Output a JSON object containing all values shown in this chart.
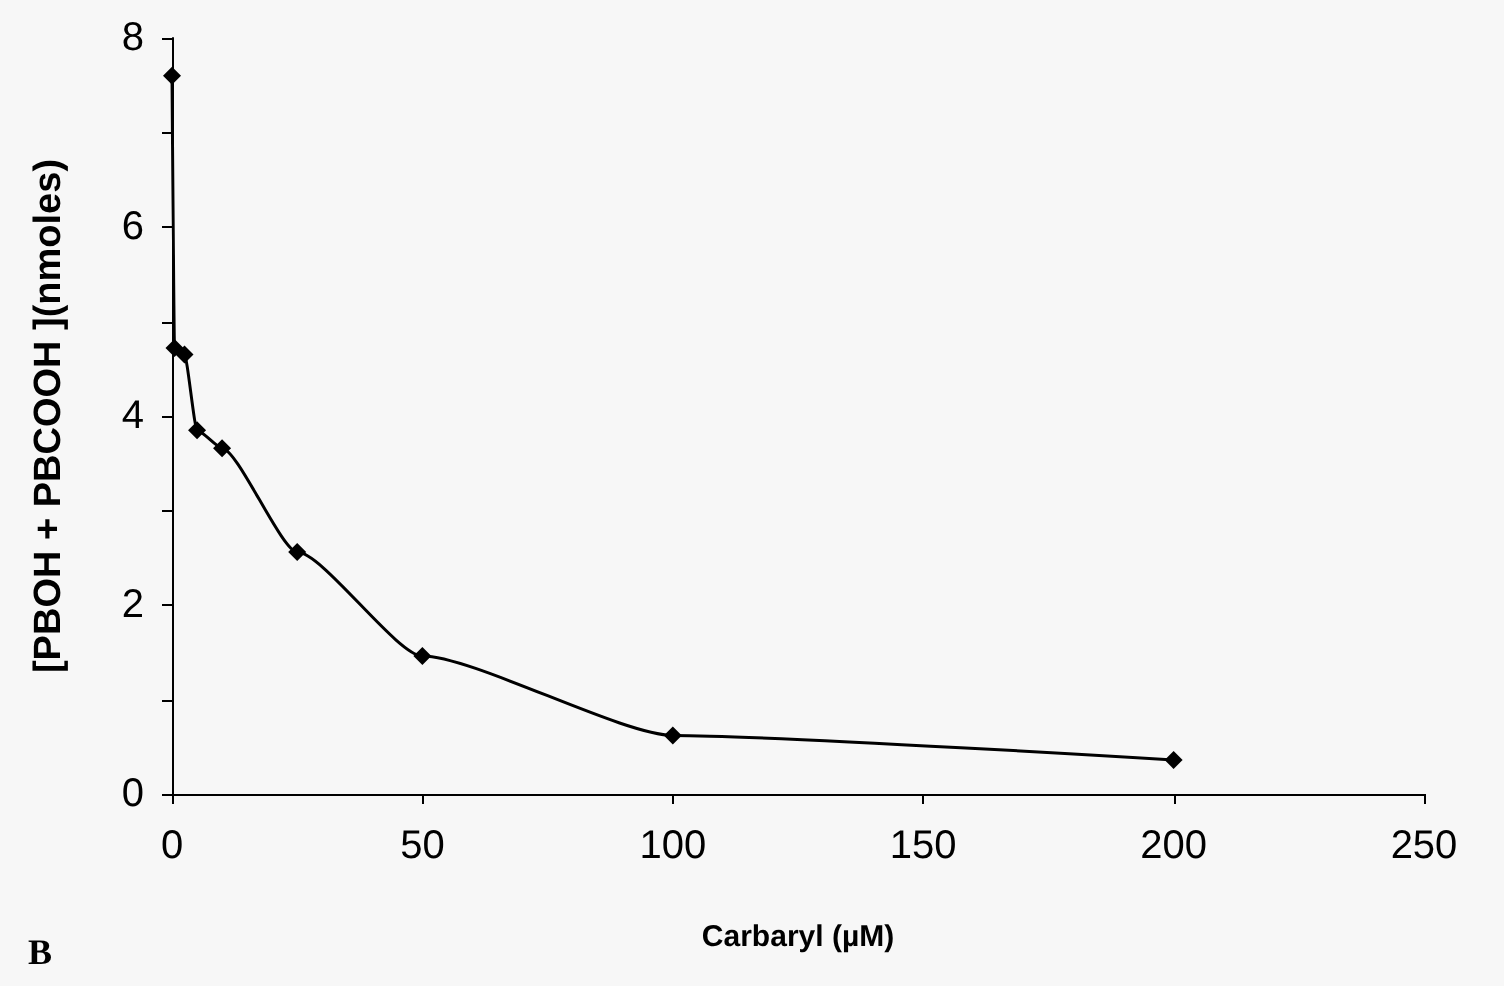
{
  "chart_data": {
    "type": "line",
    "xlabel": "Carbaryl (µM)",
    "ylabel": "[PBOH + PBCOOH ](nmoles)",
    "annotations": [
      "B"
    ],
    "x": [
      0,
      0.5,
      2.5,
      5,
      10,
      25,
      50,
      100,
      200
    ],
    "series": [
      {
        "color": "#000000",
        "values": [
          7.6,
          4.72,
          4.65,
          3.85,
          3.66,
          2.56,
          1.46,
          0.62,
          0.36
        ]
      }
    ],
    "xlim": [
      0,
      250
    ],
    "xticks": [
      0,
      50,
      100,
      150,
      200,
      250
    ],
    "ylim": [
      0,
      8
    ],
    "yticks": [
      0,
      {
        "value": 1,
        "label": null
      },
      2,
      {
        "value": 3,
        "label": null
      },
      4,
      {
        "value": 5,
        "label": null
      },
      6,
      {
        "value": 7,
        "label": null
      },
      8
    ],
    "grid": false,
    "marker": "diamond",
    "line_style": "solid"
  }
}
